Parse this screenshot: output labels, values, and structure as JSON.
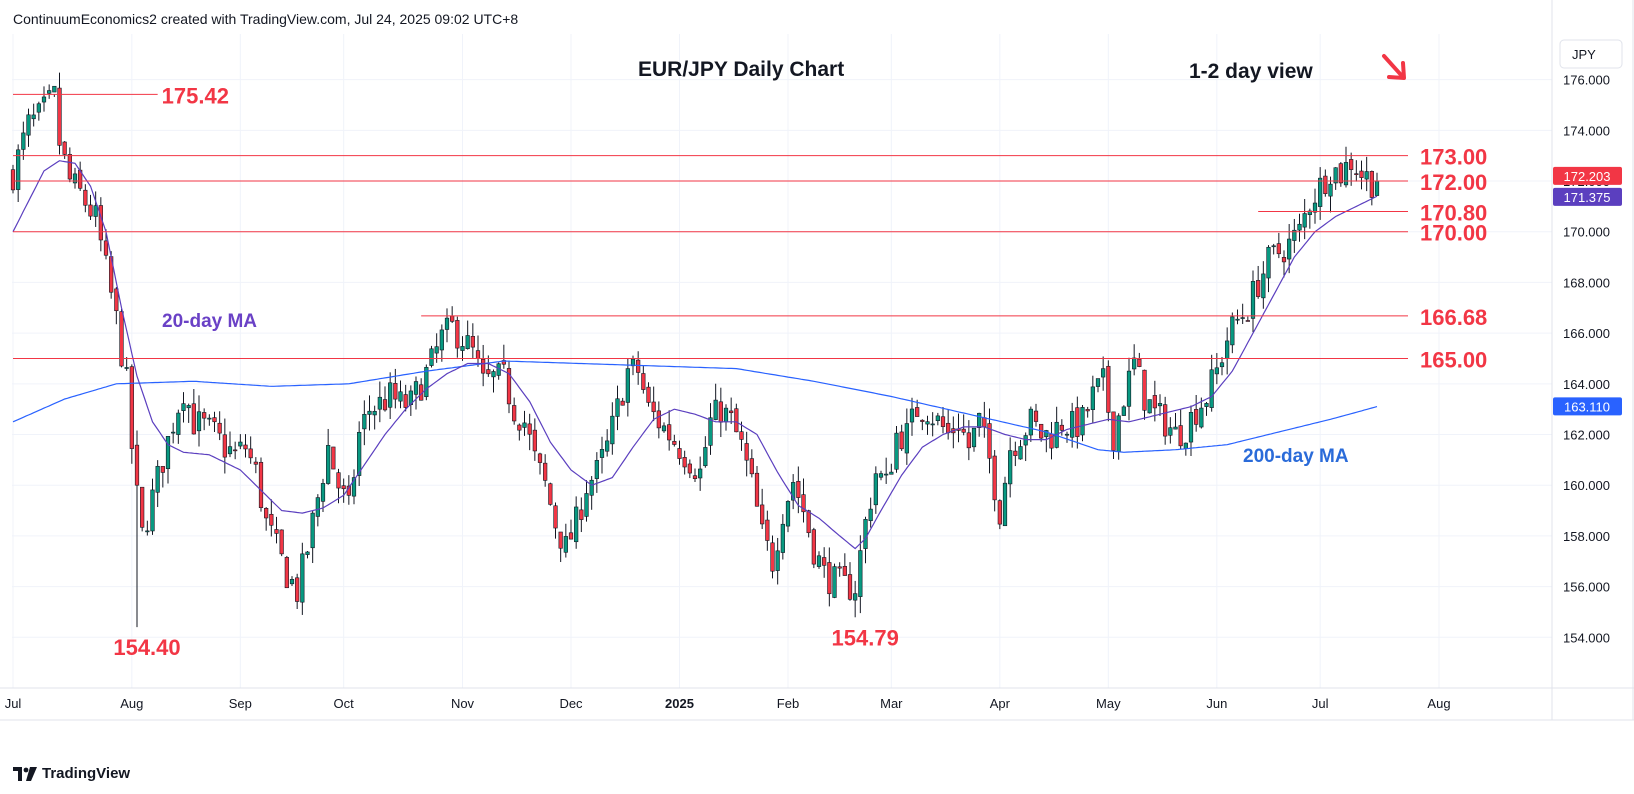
{
  "header": {
    "attribution": "ContinuumEconomics2 created with TradingView.com, Jul 24, 2025 09:02 UTC+8"
  },
  "footer": {
    "brand": "TradingView"
  },
  "colors": {
    "up": "#089981",
    "down": "#f23645",
    "level_line": "#f23645",
    "ma20": "#5b3fbf",
    "ma200": "#2962ff",
    "text_red": "#f23645",
    "ma20_label": "#6a41c6",
    "ma200_label": "#2a6bd9"
  },
  "chart_data": {
    "type": "candlestick",
    "title": "EUR/JPY Daily Chart",
    "subtitle": "1-2 day view",
    "bias_icon": "down-right-arrow-icon",
    "currency": "JPY",
    "ylim": [
      152.0,
      177.8
    ],
    "yticks": [
      "176.000",
      "174.000",
      "172.000",
      "170.000",
      "168.000",
      "166.000",
      "164.000",
      "162.000",
      "160.000",
      "158.000",
      "156.000",
      "154.000"
    ],
    "x_labels": [
      {
        "label": "Jul",
        "day": 0
      },
      {
        "label": "Aug",
        "day": 23
      },
      {
        "label": "Sep",
        "day": 44
      },
      {
        "label": "Oct",
        "day": 64
      },
      {
        "label": "Nov",
        "day": 87
      },
      {
        "label": "Dec",
        "day": 108
      },
      {
        "label": "2025",
        "day": 129,
        "bold": true
      },
      {
        "label": "Feb",
        "day": 150
      },
      {
        "label": "Mar",
        "day": 170
      },
      {
        "label": "Apr",
        "day": 191
      },
      {
        "label": "May",
        "day": 212
      },
      {
        "label": "Jun",
        "day": 233
      },
      {
        "label": "Jul",
        "day": 253
      },
      {
        "label": "Aug",
        "day": 276
      }
    ],
    "levels": [
      {
        "label": "175.42",
        "value": 175.42,
        "from_day": 0,
        "to_day": 28
      },
      {
        "label": "173.00",
        "value": 173.0,
        "from_day": 0,
        "to_day": 270
      },
      {
        "label": "172.00",
        "value": 172.0,
        "from_day": 0,
        "to_day": 270
      },
      {
        "label": "170.80",
        "value": 170.8,
        "from_day": 241,
        "to_day": 270
      },
      {
        "label": "170.00",
        "value": 170.0,
        "from_day": 0,
        "to_day": 270
      },
      {
        "label": "166.68",
        "value": 166.68,
        "from_day": 79,
        "to_day": 270
      },
      {
        "label": "165.00",
        "value": 165.0,
        "from_day": 0,
        "to_day": 270
      }
    ],
    "lows": [
      {
        "label": "154.40",
        "value": 154.4,
        "day": 24
      },
      {
        "label": "154.79",
        "value": 154.79,
        "day": 163
      }
    ],
    "price_tags": [
      {
        "label": "172.203",
        "value": 172.203,
        "color": "#f23645"
      },
      {
        "label": "171.375",
        "value": 171.375,
        "color": "#5b3fbf"
      },
      {
        "label": "163.110",
        "value": 163.11,
        "color": "#2962ff"
      }
    ],
    "ma_labels": {
      "ma20": "20-day MA",
      "ma200": "200-day MA"
    },
    "anchors": [
      [
        0,
        172.3
      ],
      [
        3,
        174.2
      ],
      [
        5,
        174.5
      ],
      [
        8,
        175.3
      ],
      [
        9,
        173.5
      ],
      [
        11,
        172.0
      ],
      [
        13,
        171.5
      ],
      [
        16,
        170.5
      ],
      [
        18,
        168.5
      ],
      [
        20,
        166.5
      ],
      [
        22,
        164.0
      ],
      [
        23,
        161.5
      ],
      [
        24,
        159.5
      ],
      [
        25,
        158.0
      ],
      [
        27,
        159.5
      ],
      [
        29,
        161.0
      ],
      [
        31,
        162.5
      ],
      [
        33,
        163.8
      ],
      [
        35,
        162.5
      ],
      [
        37,
        162.3
      ],
      [
        39,
        162.0
      ],
      [
        41,
        161.5
      ],
      [
        43,
        161.2
      ],
      [
        45,
        161.5
      ],
      [
        47,
        160.5
      ],
      [
        49,
        158.5
      ],
      [
        51,
        157.5
      ],
      [
        53,
        156.5
      ],
      [
        55,
        155.8
      ],
      [
        57,
        157.5
      ],
      [
        59,
        159.5
      ],
      [
        61,
        161.5
      ],
      [
        63,
        160.0
      ],
      [
        65,
        159.0
      ],
      [
        67,
        162.0
      ],
      [
        69,
        163.0
      ],
      [
        71,
        163.2
      ],
      [
        73,
        163.5
      ],
      [
        75,
        163.2
      ],
      [
        77,
        163.2
      ],
      [
        79,
        164.0
      ],
      [
        81,
        164.8
      ],
      [
        83,
        165.8
      ],
      [
        85,
        166.2
      ],
      [
        87,
        165.8
      ],
      [
        89,
        165.2
      ],
      [
        91,
        164.0
      ],
      [
        93,
        164.2
      ],
      [
        95,
        164.2
      ],
      [
        97,
        163.0
      ],
      [
        99,
        162.5
      ],
      [
        101,
        161.0
      ],
      [
        103,
        160.0
      ],
      [
        105,
        158.5
      ],
      [
        107,
        157.5
      ],
      [
        109,
        158.5
      ],
      [
        111,
        160.0
      ],
      [
        113,
        160.5
      ],
      [
        115,
        161.5
      ],
      [
        117,
        163.0
      ],
      [
        119,
        164.5
      ],
      [
        121,
        164.5
      ],
      [
        123,
        163.0
      ],
      [
        125,
        162.5
      ],
      [
        127,
        162.0
      ],
      [
        129,
        161.5
      ],
      [
        131,
        161.0
      ],
      [
        133,
        160.5
      ],
      [
        135,
        162.5
      ],
      [
        137,
        163.0
      ],
      [
        139,
        162.5
      ],
      [
        141,
        161.5
      ],
      [
        143,
        160.0
      ],
      [
        145,
        158.0
      ],
      [
        147,
        157.0
      ],
      [
        149,
        159.0
      ],
      [
        151,
        160.2
      ],
      [
        153,
        159.0
      ],
      [
        155,
        157.5
      ],
      [
        157,
        156.5
      ],
      [
        159,
        156.2
      ],
      [
        161,
        156.0
      ],
      [
        163,
        156.0
      ],
      [
        165,
        158.5
      ],
      [
        167,
        160.5
      ],
      [
        169,
        160.0
      ],
      [
        171,
        162.0
      ],
      [
        173,
        162.0
      ],
      [
        175,
        163.0
      ],
      [
        177,
        163.0
      ],
      [
        179,
        162.5
      ],
      [
        181,
        162.0
      ],
      [
        183,
        162.5
      ],
      [
        185,
        161.5
      ],
      [
        187,
        162.5
      ],
      [
        189,
        161.0
      ],
      [
        191,
        159.0
      ],
      [
        193,
        161.5
      ],
      [
        195,
        162.0
      ],
      [
        197,
        162.5
      ],
      [
        199,
        162.0
      ],
      [
        201,
        162.0
      ],
      [
        203,
        162.5
      ],
      [
        205,
        162.3
      ],
      [
        207,
        162.5
      ],
      [
        209,
        163.5
      ],
      [
        211,
        164.0
      ],
      [
        213,
        162.0
      ],
      [
        215,
        163.5
      ],
      [
        217,
        164.8
      ],
      [
        219,
        163.5
      ],
      [
        221,
        162.8
      ],
      [
        223,
        162.5
      ],
      [
        225,
        162.0
      ],
      [
        227,
        162.3
      ],
      [
        229,
        163.0
      ],
      [
        231,
        163.5
      ],
      [
        233,
        164.5
      ],
      [
        235,
        165.8
      ],
      [
        237,
        166.5
      ],
      [
        239,
        167.0
      ],
      [
        241,
        168.0
      ],
      [
        243,
        168.8
      ],
      [
        245,
        169.2
      ],
      [
        247,
        169.5
      ],
      [
        249,
        170.0
      ],
      [
        251,
        171.2
      ],
      [
        253,
        171.8
      ],
      [
        255,
        172.5
      ],
      [
        257,
        172.3
      ],
      [
        259,
        172.8
      ],
      [
        261,
        172.3
      ],
      [
        263,
        172.0
      ],
      [
        264,
        172.2
      ]
    ],
    "ma20_anchors": [
      [
        0,
        170.0
      ],
      [
        3,
        171.2
      ],
      [
        6,
        172.4
      ],
      [
        9,
        172.8
      ],
      [
        12,
        172.7
      ],
      [
        15,
        171.8
      ],
      [
        18,
        170.0
      ],
      [
        21,
        167.0
      ],
      [
        24,
        164.3
      ],
      [
        27,
        162.5
      ],
      [
        30,
        161.6
      ],
      [
        33,
        161.3
      ],
      [
        38,
        161.2
      ],
      [
        41,
        160.9
      ],
      [
        44,
        160.6
      ],
      [
        48,
        159.8
      ],
      [
        52,
        159.0
      ],
      [
        56,
        158.9
      ],
      [
        60,
        159.1
      ],
      [
        64,
        159.6
      ],
      [
        68,
        160.8
      ],
      [
        72,
        162.0
      ],
      [
        76,
        163.0
      ],
      [
        80,
        163.8
      ],
      [
        84,
        164.4
      ],
      [
        88,
        164.8
      ],
      [
        92,
        164.8
      ],
      [
        96,
        164.4
      ],
      [
        100,
        163.3
      ],
      [
        104,
        161.7
      ],
      [
        108,
        160.6
      ],
      [
        112,
        160.0
      ],
      [
        116,
        160.3
      ],
      [
        120,
        161.5
      ],
      [
        124,
        162.6
      ],
      [
        128,
        163.0
      ],
      [
        132,
        162.8
      ],
      [
        136,
        162.5
      ],
      [
        140,
        162.5
      ],
      [
        144,
        162.0
      ],
      [
        148,
        160.5
      ],
      [
        152,
        159.2
      ],
      [
        156,
        158.7
      ],
      [
        160,
        158.0
      ],
      [
        163,
        157.5
      ],
      [
        165,
        157.9
      ],
      [
        168,
        159.0
      ],
      [
        172,
        160.4
      ],
      [
        176,
        161.5
      ],
      [
        180,
        162.0
      ],
      [
        184,
        162.3
      ],
      [
        188,
        162.3
      ],
      [
        192,
        162.0
      ],
      [
        196,
        161.8
      ],
      [
        200,
        161.8
      ],
      [
        204,
        162.2
      ],
      [
        208,
        162.4
      ],
      [
        212,
        162.6
      ],
      [
        216,
        162.5
      ],
      [
        220,
        162.7
      ],
      [
        224,
        162.9
      ],
      [
        228,
        163.1
      ],
      [
        232,
        163.5
      ],
      [
        236,
        164.5
      ],
      [
        240,
        166.0
      ],
      [
        244,
        167.5
      ],
      [
        248,
        169.0
      ],
      [
        252,
        170.0
      ],
      [
        256,
        170.6
      ],
      [
        260,
        171.0
      ],
      [
        264,
        171.4
      ]
    ],
    "ma200_anchors": [
      [
        0,
        162.5
      ],
      [
        10,
        163.4
      ],
      [
        20,
        164.0
      ],
      [
        35,
        164.1
      ],
      [
        50,
        163.9
      ],
      [
        65,
        164.0
      ],
      [
        80,
        164.5
      ],
      [
        95,
        164.9
      ],
      [
        110,
        164.8
      ],
      [
        125,
        164.7
      ],
      [
        140,
        164.6
      ],
      [
        155,
        164.1
      ],
      [
        170,
        163.5
      ],
      [
        185,
        162.8
      ],
      [
        200,
        162.1
      ],
      [
        210,
        161.4
      ],
      [
        215,
        161.3
      ],
      [
        225,
        161.4
      ],
      [
        235,
        161.6
      ],
      [
        245,
        162.1
      ],
      [
        255,
        162.6
      ],
      [
        264,
        163.1
      ]
    ]
  }
}
